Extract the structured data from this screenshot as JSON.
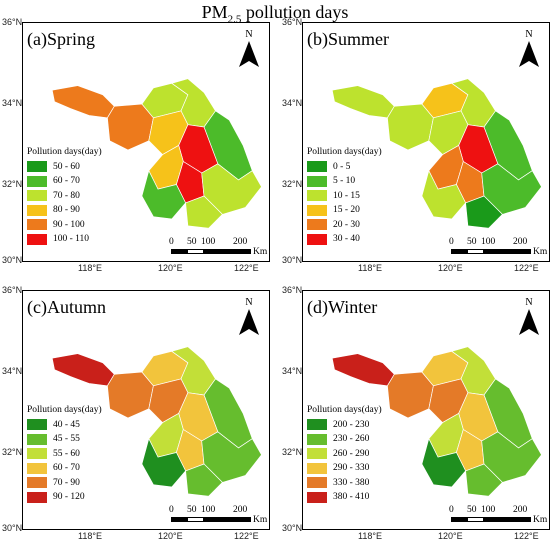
{
  "title": {
    "main": "PM",
    "sub": "2.5",
    "rest": " pollution days"
  },
  "legend_title": "Pollution days(day)",
  "north_label": "N",
  "scalebar": {
    "labels": [
      "0",
      "50",
      "100",
      "200"
    ],
    "unit": "Km"
  },
  "lat_ticks": [
    "36°N",
    "34°N",
    "32°N",
    "30°N"
  ],
  "lon_ticks": [
    "118°E",
    "120°E",
    "122°E"
  ],
  "panels": [
    {
      "label": "(a)Spring",
      "legend": [
        {
          "range": "50 - 60",
          "color": "#1a9a1a"
        },
        {
          "range": "60 - 70",
          "color": "#4cbb2a"
        },
        {
          "range": "70 - 80",
          "color": "#bde22e"
        },
        {
          "range": "80 - 90",
          "color": "#f6c21a"
        },
        {
          "range": "90 - 100",
          "color": "#ed7a1c"
        },
        {
          "range": "100 - 110",
          "color": "#ee1111"
        }
      ]
    },
    {
      "label": "(b)Summer",
      "legend": [
        {
          "range": "0 - 5",
          "color": "#1a9a1a"
        },
        {
          "range": "5 - 10",
          "color": "#4cbb2a"
        },
        {
          "range": "10 - 15",
          "color": "#bde22e"
        },
        {
          "range": "15 - 20",
          "color": "#f6c21a"
        },
        {
          "range": "20 - 30",
          "color": "#ed7a1c"
        },
        {
          "range": "30 - 40",
          "color": "#ee1111"
        }
      ]
    },
    {
      "label": "(c)Autumn",
      "legend": [
        {
          "range": "40 - 45",
          "color": "#1f8f1f"
        },
        {
          "range": "45 - 55",
          "color": "#66bd2e"
        },
        {
          "range": "55 - 60",
          "color": "#c2df38"
        },
        {
          "range": "60 - 70",
          "color": "#f2c43c"
        },
        {
          "range": "70 - 90",
          "color": "#e47a28"
        },
        {
          "range": "90 - 120",
          "color": "#c9201a"
        }
      ]
    },
    {
      "label": "(d)Winter",
      "legend": [
        {
          "range": "200 - 230",
          "color": "#1f8f1f"
        },
        {
          "range": "230 - 260",
          "color": "#66bd2e"
        },
        {
          "range": "260 - 290",
          "color": "#c2df38"
        },
        {
          "range": "290 - 330",
          "color": "#f2c43c"
        },
        {
          "range": "330 - 380",
          "color": "#e47a28"
        },
        {
          "range": "380 - 410",
          "color": "#c9201a"
        }
      ]
    }
  ]
}
